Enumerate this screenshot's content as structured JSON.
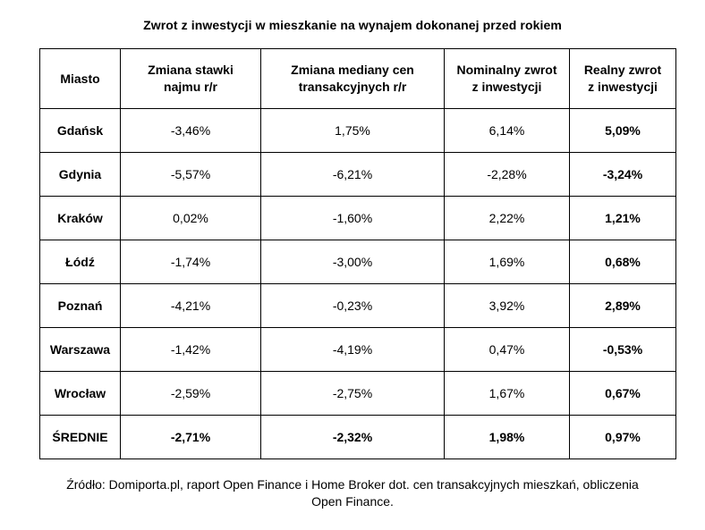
{
  "chart_data": {
    "type": "table",
    "title": "Zwrot z inwestycji w mieszkanie na wynajem dokonanej przed rokiem",
    "columns": [
      [
        "Miasto"
      ],
      [
        "Zmiana stawki",
        "najmu r/r"
      ],
      [
        "Zmiana mediany cen",
        "transakcyjnych r/r"
      ],
      [
        "Nominalny zwrot",
        "z inwestycji"
      ],
      [
        "Realny zwrot",
        "z inwestycji"
      ]
    ],
    "rows": [
      {
        "city": "Gdańsk",
        "rent_change": "-3,46%",
        "median_price_change": "1,75%",
        "nominal_return": "6,14%",
        "real_return": "5,09%"
      },
      {
        "city": "Gdynia",
        "rent_change": "-5,57%",
        "median_price_change": "-6,21%",
        "nominal_return": "-2,28%",
        "real_return": "-3,24%"
      },
      {
        "city": "Kraków",
        "rent_change": "0,02%",
        "median_price_change": "-1,60%",
        "nominal_return": "2,22%",
        "real_return": "1,21%"
      },
      {
        "city": "Łódź",
        "rent_change": "-1,74%",
        "median_price_change": "-3,00%",
        "nominal_return": "1,69%",
        "real_return": "0,68%"
      },
      {
        "city": "Poznań",
        "rent_change": "-4,21%",
        "median_price_change": "-0,23%",
        "nominal_return": "3,92%",
        "real_return": "2,89%"
      },
      {
        "city": "Warszawa",
        "rent_change": "-1,42%",
        "median_price_change": "-4,19%",
        "nominal_return": "0,47%",
        "real_return": "-0,53%"
      },
      {
        "city": "Wrocław",
        "rent_change": "-2,59%",
        "median_price_change": "-2,75%",
        "nominal_return": "1,67%",
        "real_return": "0,67%"
      }
    ],
    "summary": {
      "city": "ŚREDNIE",
      "rent_change": "-2,71%",
      "median_price_change": "-2,32%",
      "nominal_return": "1,98%",
      "real_return": "0,97%"
    }
  },
  "source": {
    "line1": "Źródło: Domiporta.pl, raport Open Finance i Home Broker dot. cen transakcyjnych mieszkań, obliczenia",
    "line2": "Open Finance."
  }
}
